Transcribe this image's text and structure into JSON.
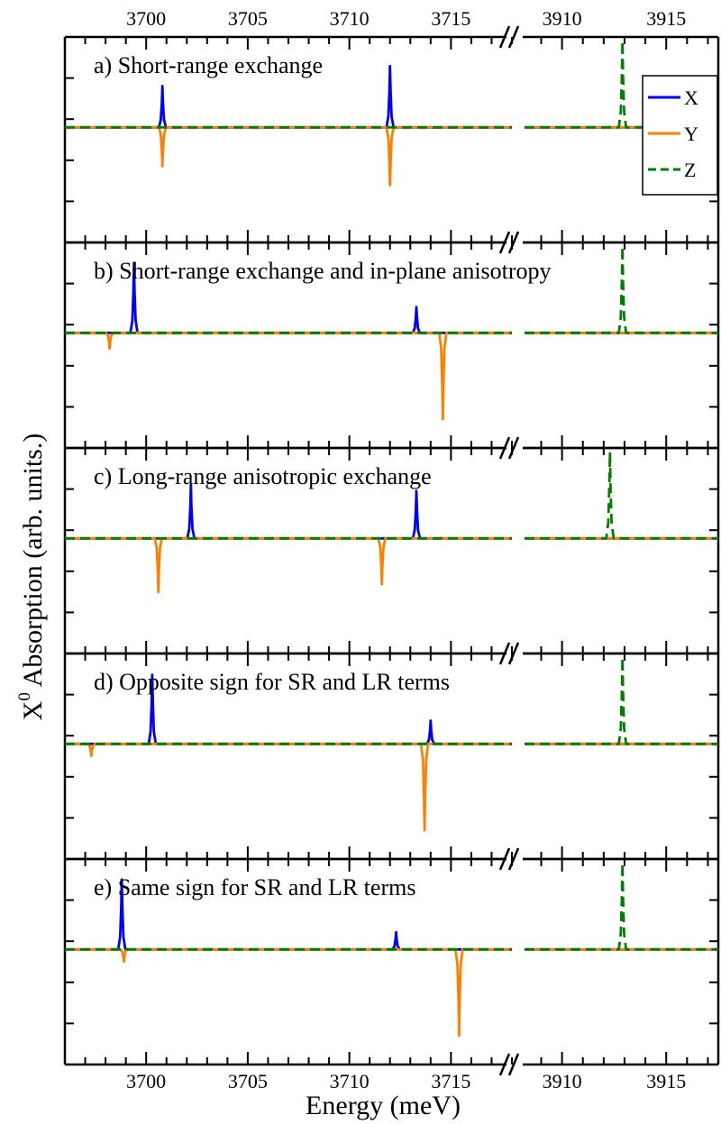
{
  "chart_data": {
    "type": "line",
    "xlabel": "Energy (meV)",
    "ylabel_main": "X",
    "ylabel_sup": "0",
    "ylabel_rest": " Absorption (arb. units.)",
    "x_break": {
      "left_range": [
        3696,
        3718
      ],
      "right_range": [
        3908.2,
        3917.5
      ]
    },
    "x_ticks_left": [
      3700,
      3705,
      3710,
      3715
    ],
    "x_ticks_right": [
      3910,
      3915
    ],
    "legend": [
      {
        "name": "X",
        "color": "#0000ff",
        "dash": "solid"
      },
      {
        "name": "Y",
        "color": "#ff8000",
        "dash": "solid"
      },
      {
        "name": "Z",
        "color": "#008000",
        "dash": "dashed"
      }
    ],
    "panels": [
      {
        "title": "a) Short-range exchange",
        "x_peaks": [
          {
            "x": 3700.8,
            "amp": 0.48
          },
          {
            "x": 3712.0,
            "amp": 0.71
          }
        ],
        "y_peaks": [
          {
            "x": 3700.8,
            "amp": -0.45
          },
          {
            "x": 3712.0,
            "amp": -0.67
          }
        ],
        "z_peaks": [
          {
            "x": 3912.9,
            "amp": 1.0
          }
        ]
      },
      {
        "title": "b) Short-range exchange and in-plane anisotropy",
        "x_peaks": [
          {
            "x": 3699.4,
            "amp": 0.8
          },
          {
            "x": 3713.3,
            "amp": 0.3
          }
        ],
        "y_peaks": [
          {
            "x": 3698.2,
            "amp": -0.18
          },
          {
            "x": 3714.6,
            "amp": -1.0
          }
        ],
        "z_peaks": [
          {
            "x": 3912.9,
            "amp": 1.0
          }
        ]
      },
      {
        "title": "c) Long-range anisotropic exchange",
        "x_peaks": [
          {
            "x": 3702.2,
            "amp": 0.62
          },
          {
            "x": 3713.3,
            "amp": 0.55
          }
        ],
        "y_peaks": [
          {
            "x": 3700.6,
            "amp": -0.62
          },
          {
            "x": 3711.6,
            "amp": -0.53
          }
        ],
        "z_peaks": [
          {
            "x": 3912.3,
            "amp": 1.0
          }
        ]
      },
      {
        "title": "d) Opposite sign for SR and LR terms",
        "x_peaks": [
          {
            "x": 3700.3,
            "amp": 0.8
          },
          {
            "x": 3714.0,
            "amp": 0.27
          }
        ],
        "y_peaks": [
          {
            "x": 3697.3,
            "amp": -0.14
          },
          {
            "x": 3713.7,
            "amp": -1.0
          }
        ],
        "z_peaks": [
          {
            "x": 3912.9,
            "amp": 1.0
          }
        ]
      },
      {
        "title": "e) Same sign for SR and LR terms",
        "x_peaks": [
          {
            "x": 3698.8,
            "amp": 0.81
          },
          {
            "x": 3712.3,
            "amp": 0.2
          }
        ],
        "y_peaks": [
          {
            "x": 3698.9,
            "amp": -0.14
          },
          {
            "x": 3715.4,
            "amp": -1.0
          }
        ],
        "z_peaks": [
          {
            "x": 3912.9,
            "amp": 1.0
          }
        ]
      }
    ]
  }
}
